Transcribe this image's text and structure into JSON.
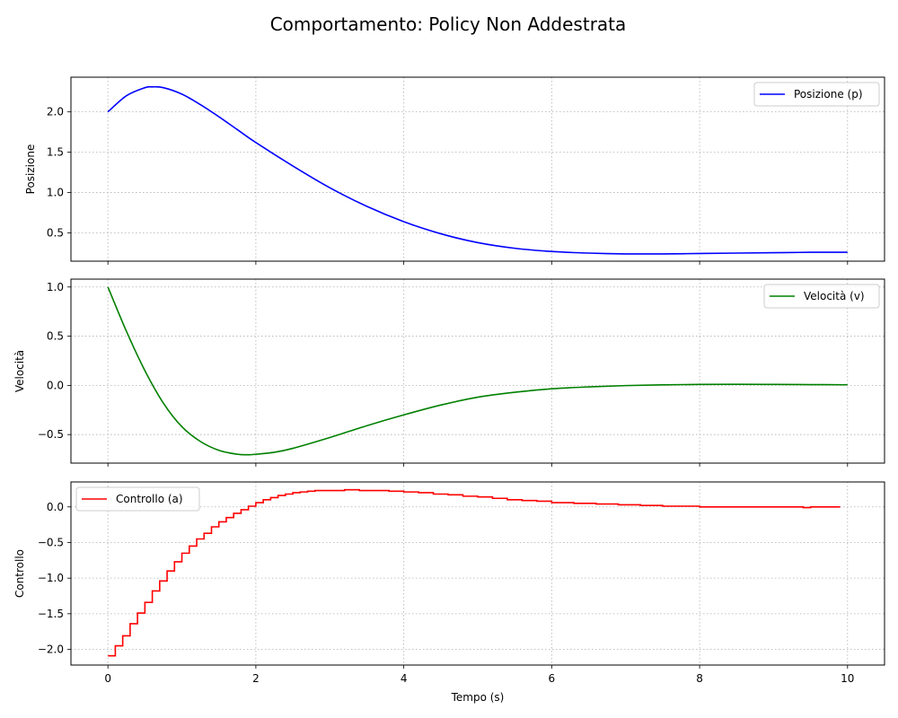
{
  "title": "Comportamento: Policy Non Addestrata",
  "chart_data": [
    {
      "type": "line",
      "ylabel": "Posizione",
      "xlabel": "",
      "xlim": [
        -0.5,
        10.5
      ],
      "ylim": [
        0.15,
        2.43
      ],
      "xticks": [
        0,
        2,
        4,
        6,
        8,
        10
      ],
      "yticks": [
        0.5,
        1.0,
        1.5,
        2.0
      ],
      "ytick_labels": [
        "0.5",
        "1.0",
        "1.5",
        "2.0"
      ],
      "xtick_labels_visible": false,
      "grid": true,
      "legend_position": "upper right",
      "series": [
        {
          "name": "Posizione (p)",
          "color": "#0000ff",
          "step": false,
          "x": [
            0,
            0.25,
            0.5,
            0.6,
            0.75,
            1.0,
            1.25,
            1.5,
            1.75,
            2.0,
            2.5,
            3.0,
            3.5,
            4.0,
            4.5,
            5.0,
            5.5,
            6.0,
            6.5,
            7.0,
            7.5,
            8.0,
            8.5,
            9.0,
            9.5,
            10.0
          ],
          "y": [
            2.0,
            2.2,
            2.3,
            2.31,
            2.3,
            2.22,
            2.09,
            1.94,
            1.78,
            1.62,
            1.33,
            1.06,
            0.83,
            0.64,
            0.49,
            0.38,
            0.31,
            0.27,
            0.25,
            0.24,
            0.24,
            0.245,
            0.25,
            0.255,
            0.26,
            0.26
          ]
        }
      ]
    },
    {
      "type": "line",
      "ylabel": "Velocità",
      "xlabel": "",
      "xlim": [
        -0.5,
        10.5
      ],
      "ylim": [
        -0.79,
        1.08
      ],
      "xticks": [
        0,
        2,
        4,
        6,
        8,
        10
      ],
      "yticks": [
        -0.5,
        0.0,
        0.5,
        1.0
      ],
      "ytick_labels": [
        "−0.5",
        "0.0",
        "0.5",
        "1.0"
      ],
      "xtick_labels_visible": false,
      "grid": true,
      "legend_position": "upper right",
      "series": [
        {
          "name": "Velocità (v)",
          "color": "#008000",
          "step": false,
          "x": [
            0,
            0.25,
            0.5,
            0.75,
            1.0,
            1.25,
            1.5,
            1.75,
            1.9,
            2.0,
            2.25,
            2.5,
            3.0,
            3.5,
            4.0,
            4.5,
            5.0,
            5.5,
            6.0,
            6.5,
            7.0,
            7.5,
            8.0,
            8.5,
            9.0,
            9.5,
            10.0
          ],
          "y": [
            1.0,
            0.55,
            0.15,
            -0.18,
            -0.42,
            -0.57,
            -0.66,
            -0.7,
            -0.705,
            -0.7,
            -0.68,
            -0.64,
            -0.53,
            -0.41,
            -0.3,
            -0.2,
            -0.12,
            -0.07,
            -0.035,
            -0.015,
            -0.002,
            0.005,
            0.01,
            0.011,
            0.01,
            0.008,
            0.006
          ]
        }
      ]
    },
    {
      "type": "line",
      "ylabel": "Controllo",
      "xlabel": "Tempo (s)",
      "xlim": [
        -0.5,
        10.5
      ],
      "ylim": [
        -2.22,
        0.35
      ],
      "xticks": [
        0,
        2,
        4,
        6,
        8,
        10
      ],
      "xtick_labels": [
        "0",
        "2",
        "4",
        "6",
        "8",
        "10"
      ],
      "yticks": [
        -2.0,
        -1.5,
        -1.0,
        -0.5,
        0.0
      ],
      "ytick_labels": [
        "−2.0",
        "−1.5",
        "−1.0",
        "−0.5",
        "0.0"
      ],
      "xtick_labels_visible": true,
      "grid": true,
      "legend_position": "upper left",
      "series": [
        {
          "name": "Controllo (a)",
          "color": "#ff0000",
          "step": true,
          "x": [
            0,
            0.1,
            0.2,
            0.3,
            0.4,
            0.5,
            0.6,
            0.7,
            0.8,
            0.9,
            1.0,
            1.1,
            1.2,
            1.3,
            1.4,
            1.5,
            1.6,
            1.7,
            1.8,
            1.9,
            2.0,
            2.1,
            2.2,
            2.3,
            2.4,
            2.5,
            2.6,
            2.7,
            2.8,
            3.0,
            3.2,
            3.4,
            3.6,
            3.8,
            4.0,
            4.2,
            4.4,
            4.6,
            4.8,
            5.0,
            5.2,
            5.4,
            5.6,
            5.8,
            6.0,
            6.3,
            6.6,
            6.9,
            7.2,
            7.5,
            8.0,
            8.5,
            9.0,
            9.4,
            9.5,
            9.9
          ],
          "y": [
            -2.09,
            -1.95,
            -1.81,
            -1.64,
            -1.49,
            -1.34,
            -1.18,
            -1.04,
            -0.9,
            -0.77,
            -0.65,
            -0.55,
            -0.45,
            -0.37,
            -0.28,
            -0.21,
            -0.15,
            -0.09,
            -0.04,
            0.01,
            0.06,
            0.1,
            0.13,
            0.16,
            0.18,
            0.2,
            0.21,
            0.22,
            0.23,
            0.23,
            0.24,
            0.23,
            0.23,
            0.22,
            0.21,
            0.2,
            0.18,
            0.17,
            0.15,
            0.14,
            0.12,
            0.1,
            0.09,
            0.08,
            0.06,
            0.05,
            0.04,
            0.03,
            0.02,
            0.01,
            0.0,
            0.0,
            0.0,
            -0.01,
            0.0,
            0.0
          ]
        }
      ]
    }
  ]
}
